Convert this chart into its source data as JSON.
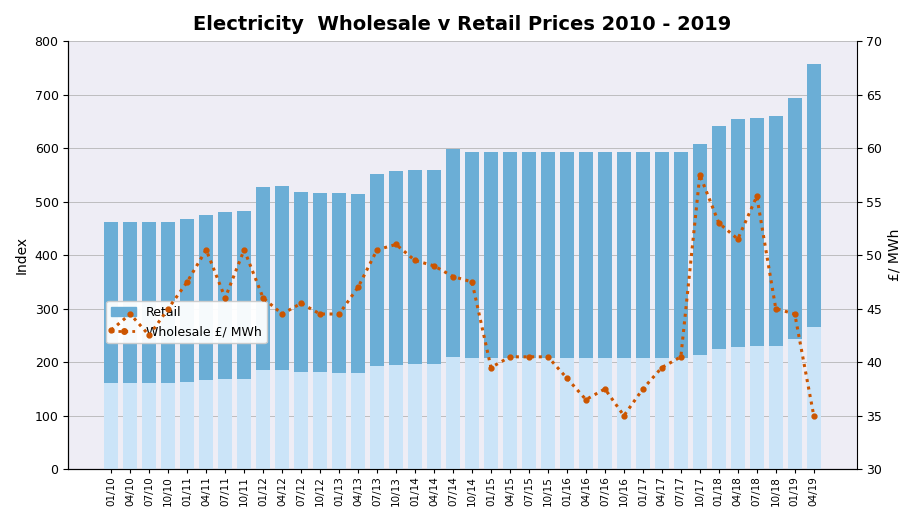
{
  "title": "Electricity  Wholesale v Retail Prices 2010 - 2019",
  "left_ylabel": "Index",
  "right_ylabel": "£/ MWh",
  "categories": [
    "01/10",
    "04/10",
    "07/10",
    "10/10",
    "01/11",
    "04/11",
    "07/11",
    "10/11",
    "01/12",
    "04/12",
    "07/12",
    "10/12",
    "01/13",
    "04/13",
    "07/13",
    "10/13",
    "01/14",
    "04/14",
    "07/14",
    "10/14",
    "01/15",
    "04/15",
    "07/15",
    "10/15",
    "01/16",
    "04/16",
    "07/16",
    "10/16",
    "01/17",
    "04/17",
    "07/17",
    "10/17",
    "01/18",
    "04/18",
    "07/18",
    "10/18",
    "01/19",
    "04/19"
  ],
  "retail": [
    462,
    462,
    462,
    462,
    468,
    475,
    480,
    482,
    528,
    530,
    518,
    517,
    516,
    514,
    552,
    557,
    560,
    560,
    598,
    592,
    592,
    592,
    592,
    592,
    592,
    592,
    592,
    592,
    592,
    592,
    592,
    608,
    642,
    655,
    657,
    660,
    693,
    757
  ],
  "wholesale": [
    43.0,
    44.5,
    42.5,
    45.0,
    47.5,
    50.5,
    46.0,
    50.5,
    46.0,
    44.5,
    45.5,
    44.5,
    44.5,
    47.0,
    50.5,
    51.0,
    49.5,
    49.0,
    48.0,
    47.5,
    39.5,
    40.5,
    40.5,
    40.5,
    38.5,
    36.5,
    37.5,
    35.0,
    37.5,
    39.5,
    40.5,
    57.5,
    53.0,
    51.5,
    55.5,
    45.0,
    44.5,
    35.0
  ],
  "bar_color_top": "#6baed6",
  "bar_color_bottom": "#ddeeff",
  "line_color": "#cc5500",
  "left_ylim": [
    0,
    800
  ],
  "right_ylim": [
    30,
    70
  ],
  "left_yticks": [
    0,
    100,
    200,
    300,
    400,
    500,
    600,
    700,
    800
  ],
  "right_yticks": [
    30,
    35,
    40,
    45,
    50,
    55,
    60,
    65,
    70
  ],
  "background_color": "#ffffff",
  "plot_bg_color": "#eeedf5"
}
